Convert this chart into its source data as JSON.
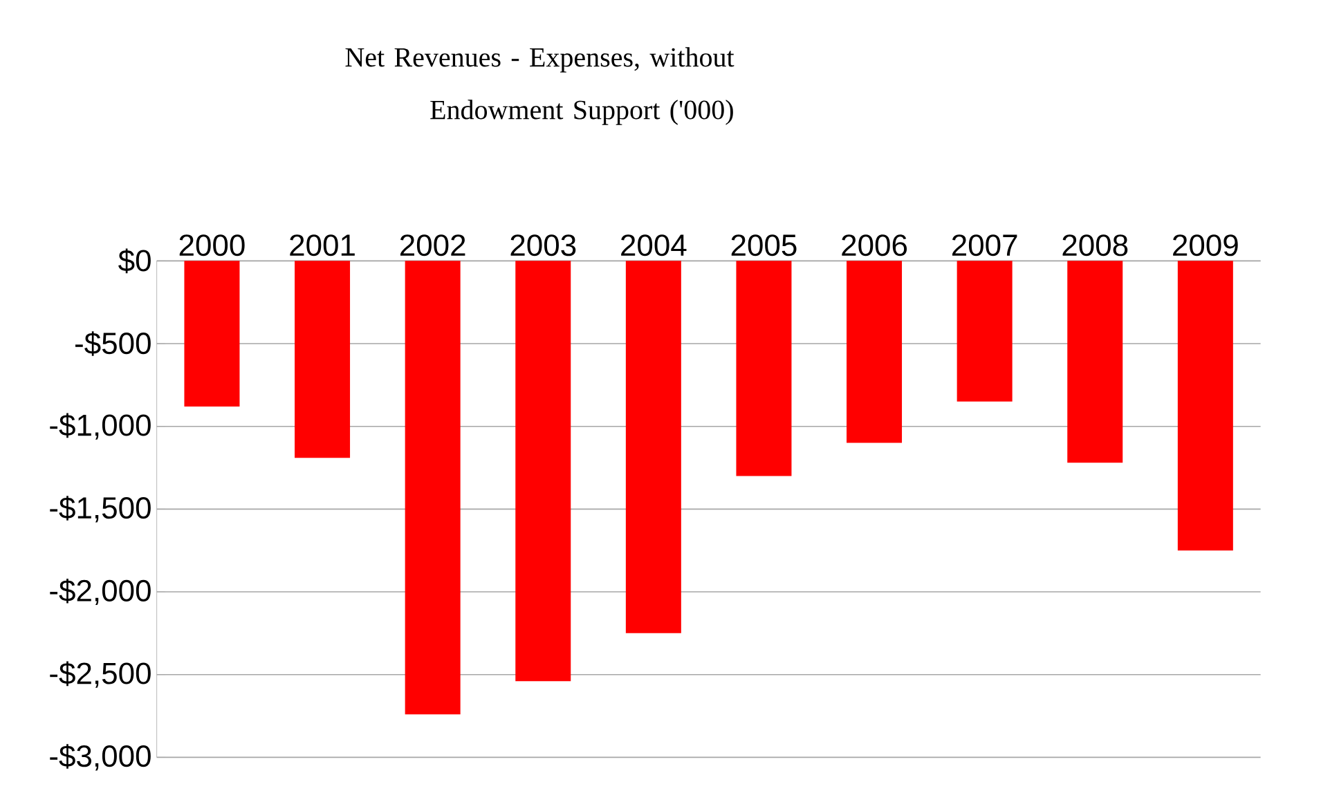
{
  "chart_data": {
    "type": "bar",
    "title": "Net Revenues - Expenses, without Endowment Support ('000)",
    "categories": [
      "2000",
      "2001",
      "2002",
      "2003",
      "2004",
      "2005",
      "2006",
      "2007",
      "2008",
      "2009"
    ],
    "values": [
      -880,
      -1190,
      -2740,
      -2540,
      -2250,
      -1300,
      -1100,
      -850,
      -1220,
      -1750
    ],
    "color": "#ff0000",
    "ylim": [
      -3000,
      0
    ],
    "yticks": [
      {
        "value": 0,
        "label": "$0"
      },
      {
        "value": -500,
        "label": "-$500"
      },
      {
        "value": -1000,
        "label": "-$1,000"
      },
      {
        "value": -1500,
        "label": "-$1,500"
      },
      {
        "value": -2000,
        "label": "-$2,000"
      },
      {
        "value": -2500,
        "label": "-$2,500"
      },
      {
        "value": -3000,
        "label": "-$3,000"
      }
    ],
    "grid": "y"
  }
}
